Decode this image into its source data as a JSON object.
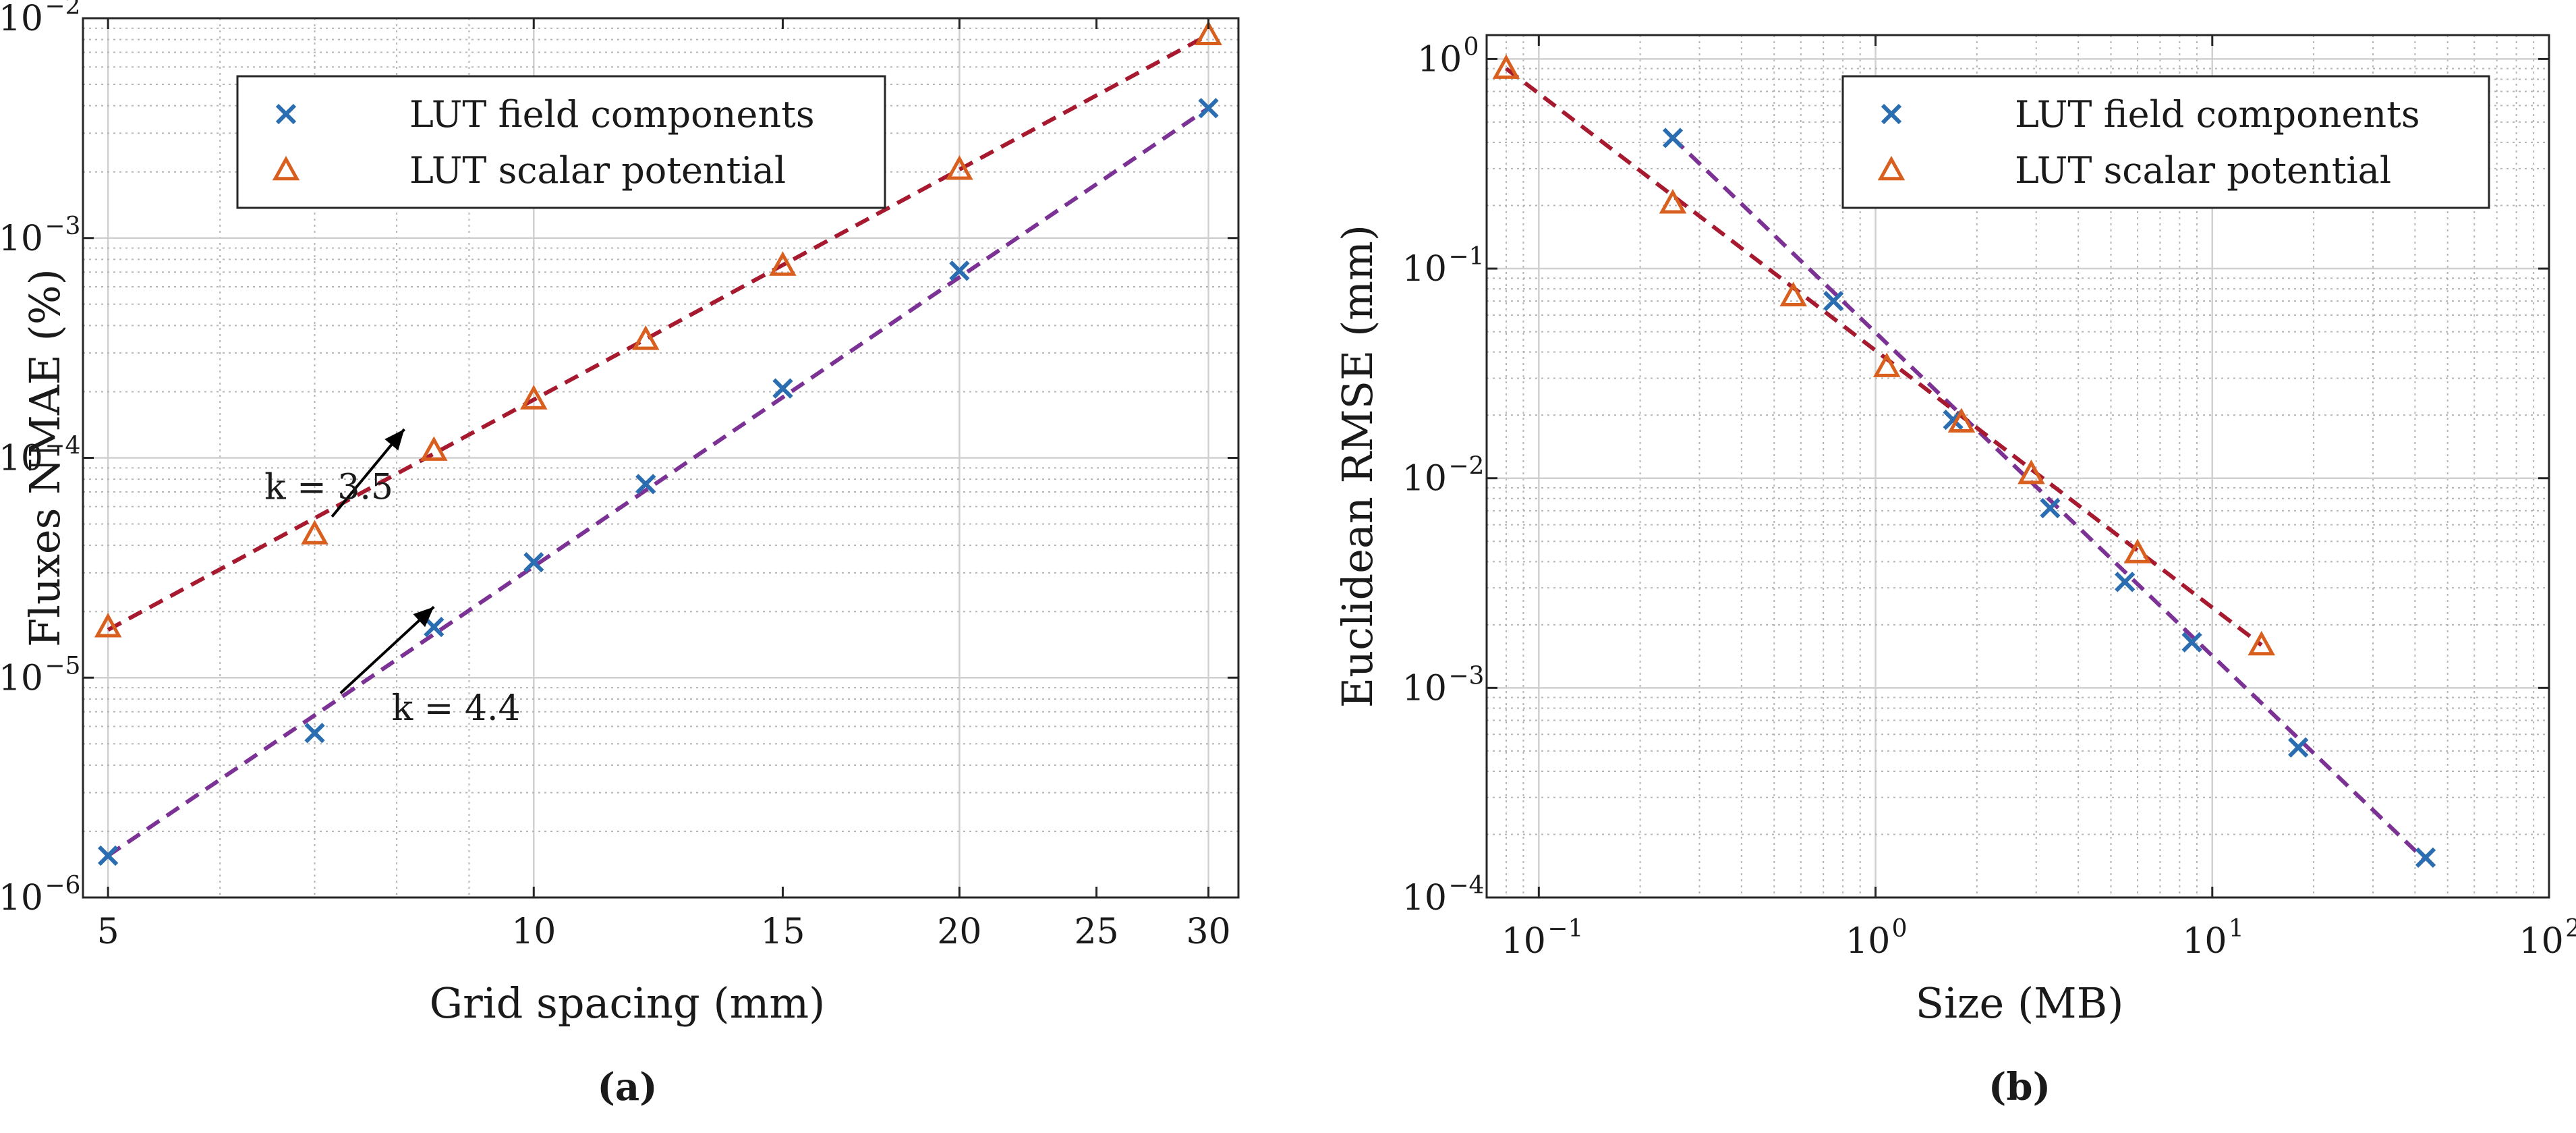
{
  "chart_data": [
    {
      "type": "scatter",
      "panel_label": "(a)",
      "xscale": "log",
      "yscale": "log",
      "xlabel": "Grid spacing (mm)",
      "ylabel": "Fluxes NMAE (%)",
      "xlim": [
        4.8,
        31.5
      ],
      "ylim": [
        1e-06,
        0.01
      ],
      "xticks": [
        5,
        10,
        15,
        20,
        25,
        30
      ],
      "xtick_labels": [
        "5",
        "10",
        "15",
        "20",
        "25",
        "30"
      ],
      "yticks": [
        1e-06,
        1e-05,
        0.0001,
        0.001,
        0.01
      ],
      "ytick_bases": [
        "10",
        "10",
        "10",
        "10",
        "10"
      ],
      "ytick_exps": [
        "−6",
        "−5",
        "−4",
        "−3",
        "−2"
      ],
      "grid": true,
      "minor_grid": true,
      "legend_position": "top-left",
      "series": [
        {
          "name": "LUT field components",
          "marker": "x",
          "color": "#2a6db0",
          "x": [
            5,
            7,
            8.5,
            10,
            12,
            15,
            20,
            30
          ],
          "y": [
            1.55e-06,
            5.6e-06,
            1.7e-05,
            3.35e-05,
            7.6e-05,
            0.000207,
            0.00071,
            0.0039
          ],
          "fit": {
            "x": [
              5,
              30
            ],
            "y": [
              1.55e-06,
              0.0039
            ],
            "color": "#7b3294"
          }
        },
        {
          "name": "LUT scalar potential",
          "marker": "triangle",
          "color": "#d95f1f",
          "x": [
            5,
            7,
            8.5,
            10,
            12,
            15,
            20,
            30
          ],
          "y": [
            1.7e-05,
            4.5e-05,
            0.000108,
            0.000185,
            0.000345,
            0.00075,
            0.00205,
            0.0084
          ],
          "fit": {
            "x": [
              5,
              30
            ],
            "y": [
              1.65e-05,
              0.0084
            ],
            "color": "#a6192e"
          }
        }
      ],
      "annotations": [
        {
          "text": "k = 3.5",
          "arrow_to": [
            8.1,
            0.000135
          ],
          "arrow_from": [
            7.2,
            5.4e-05
          ]
        },
        {
          "text": "k = 4.4",
          "arrow_to": [
            8.5,
            2.1e-05
          ],
          "arrow_from": [
            7.3,
            8.5e-06
          ]
        }
      ]
    },
    {
      "type": "scatter",
      "panel_label": "(b)",
      "xscale": "log",
      "yscale": "log",
      "xlabel": "Size (MB)",
      "ylabel": "Euclidean RMSE (mm)",
      "xlim": [
        0.07,
        100
      ],
      "ylim": [
        0.0001,
        1.3
      ],
      "xticks": [
        0.1,
        1,
        10,
        100
      ],
      "xtick_bases": [
        "10",
        "10",
        "10",
        "10"
      ],
      "xtick_exps": [
        "−1",
        "0",
        "1",
        "2"
      ],
      "yticks": [
        0.0001,
        0.001,
        0.01,
        0.1,
        1
      ],
      "ytick_bases": [
        "10",
        "10",
        "10",
        "10",
        "10"
      ],
      "ytick_exps": [
        "−4",
        "−3",
        "−2",
        "−1",
        "0"
      ],
      "grid": true,
      "minor_grid": true,
      "legend_position": "top-right",
      "series": [
        {
          "name": "LUT field components",
          "marker": "x",
          "color": "#2a6db0",
          "x": [
            0.25,
            0.75,
            1.7,
            3.3,
            5.5,
            8.7,
            18,
            43
          ],
          "y": [
            0.42,
            0.07,
            0.019,
            0.0072,
            0.0032,
            0.00165,
            0.00052,
            0.000155
          ],
          "fit": {
            "x": [
              0.25,
              43
            ],
            "y": [
              0.42,
              0.00015
            ],
            "color": "#7b3294"
          }
        },
        {
          "name": "LUT scalar potential",
          "marker": "triangle",
          "color": "#d95f1f",
          "x": [
            0.08,
            0.25,
            0.57,
            1.08,
            1.8,
            2.9,
            6,
            14
          ],
          "y": [
            0.9,
            0.205,
            0.074,
            0.034,
            0.0185,
            0.0105,
            0.0044,
            0.0016
          ],
          "fit": {
            "x": [
              0.08,
              14
            ],
            "y": [
              0.9,
              0.0016
            ],
            "color": "#a6192e"
          }
        }
      ]
    }
  ]
}
